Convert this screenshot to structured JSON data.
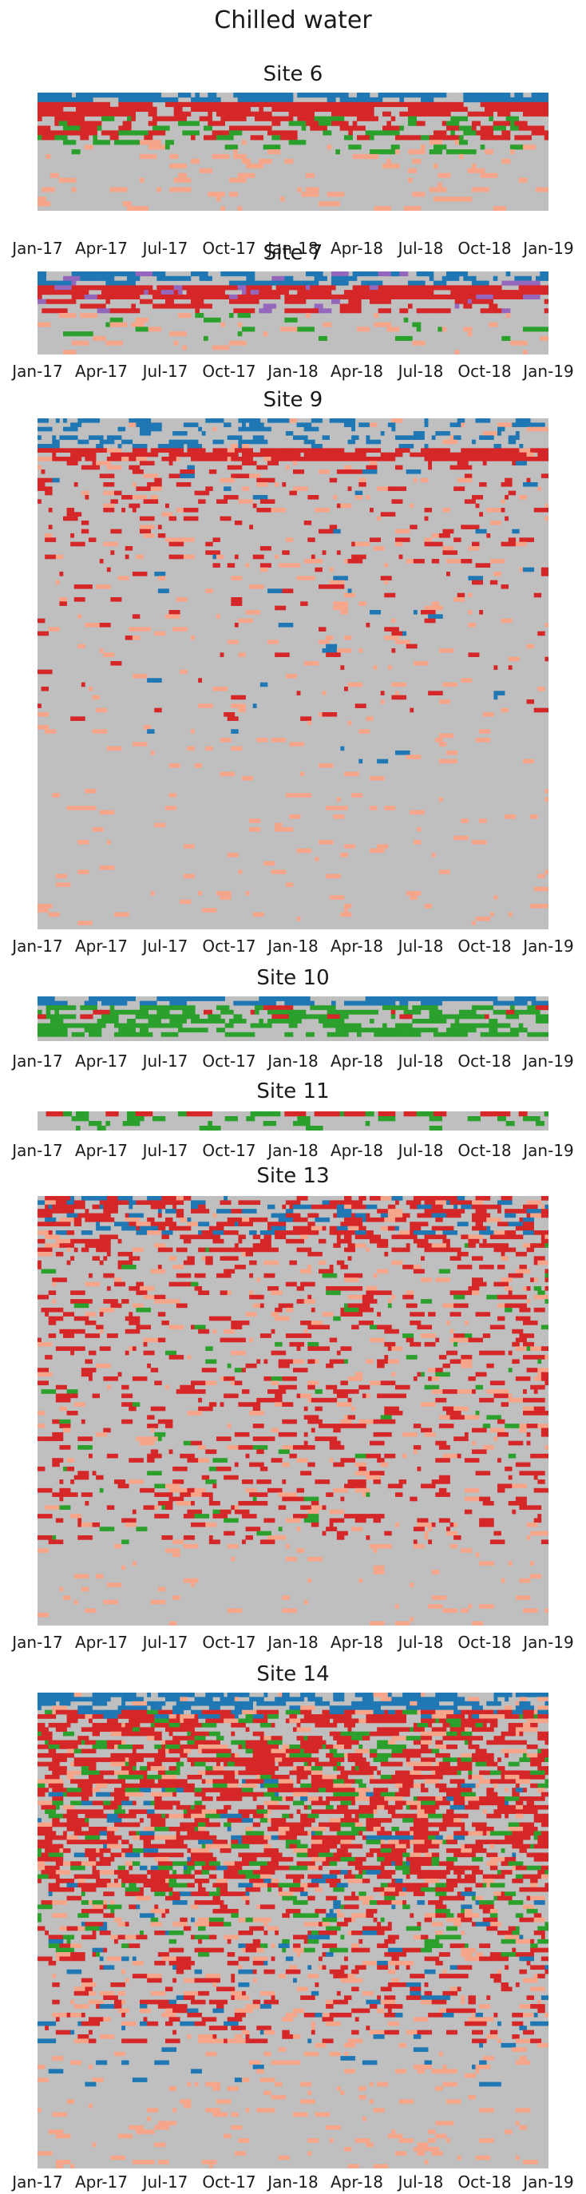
{
  "title": "Chilled water",
  "chart_data": [
    {
      "type": "heatmap",
      "title": "Site 6",
      "x_tick_labels": [
        "Jan-17",
        "Apr-17",
        "Jul-17",
        "Oct-17",
        "Jan-18",
        "Apr-18",
        "Jul-18",
        "Oct-18",
        "Jan-19"
      ],
      "rows": 25,
      "cols": 120,
      "seed": 6,
      "bands": [
        {
          "rows": [
            0,
            1
          ],
          "color": "#1f77b4",
          "p": 0.75
        },
        {
          "rows": [
            2,
            4
          ],
          "color": "#d62728",
          "p": 0.85
        },
        {
          "rows": [
            5,
            9
          ],
          "color": "#d62728",
          "p": 0.45
        },
        {
          "rows": [
            5,
            12
          ],
          "color": "#2ca02c",
          "p": 0.18
        },
        {
          "rows": [
            10,
            24
          ],
          "color": "#f5a58a",
          "p": 0.12
        }
      ]
    },
    {
      "type": "heatmap",
      "title": "Site 7",
      "x_tick_labels": [
        "Jan-17",
        "Apr-17",
        "Jul-17",
        "Oct-17",
        "Jan-18",
        "Apr-18",
        "Jul-18",
        "Oct-18",
        "Jan-19"
      ],
      "rows": 18,
      "cols": 120,
      "seed": 7,
      "bands": [
        {
          "rows": [
            0,
            2
          ],
          "color": "#1f77b4",
          "p": 0.55
        },
        {
          "rows": [
            3,
            5
          ],
          "color": "#d62728",
          "p": 0.85
        },
        {
          "rows": [
            6,
            8
          ],
          "color": "#d62728",
          "p": 0.4
        },
        {
          "rows": [
            0,
            8
          ],
          "color": "#9467bd",
          "p": 0.05
        },
        {
          "rows": [
            9,
            17
          ],
          "color": "#f5a58a",
          "p": 0.1
        },
        {
          "rows": [
            9,
            14
          ],
          "color": "#2ca02c",
          "p": 0.06
        }
      ]
    },
    {
      "type": "heatmap",
      "title": "Site 9",
      "x_tick_labels": [
        "Jan-17",
        "Apr-17",
        "Jul-17",
        "Oct-17",
        "Jan-18",
        "Apr-18",
        "Jul-18",
        "Oct-18",
        "Jan-19"
      ],
      "rows": 120,
      "cols": 140,
      "seed": 9,
      "bands": [
        {
          "rows": [
            0,
            6
          ],
          "color": "#1f77b4",
          "p": 0.25
        },
        {
          "rows": [
            7,
            9
          ],
          "color": "#d62728",
          "p": 0.8
        },
        {
          "rows": [
            10,
            35
          ],
          "color": "#d62728",
          "p": 0.12
        },
        {
          "rows": [
            36,
            70
          ],
          "color": "#d62728",
          "p": 0.04
        },
        {
          "rows": [
            0,
            119
          ],
          "color": "#f5a58a",
          "p": 0.04
        },
        {
          "rows": [
            10,
            80
          ],
          "color": "#1f77b4",
          "p": 0.01
        }
      ]
    },
    {
      "type": "heatmap",
      "title": "Site 10",
      "x_tick_labels": [
        "Jan-17",
        "Apr-17",
        "Jul-17",
        "Oct-17",
        "Jan-18",
        "Apr-18",
        "Jul-18",
        "Oct-18",
        "Jan-19"
      ],
      "rows": 10,
      "cols": 120,
      "seed": 10,
      "bands": [
        {
          "rows": [
            0,
            1
          ],
          "color": "#1f77b4",
          "p": 0.7
        },
        {
          "rows": [
            2,
            8
          ],
          "color": "#2ca02c",
          "p": 0.55
        },
        {
          "rows": [
            2,
            4
          ],
          "color": "#d62728",
          "p": 0.08
        }
      ]
    },
    {
      "type": "heatmap",
      "title": "Site 11",
      "x_tick_labels": [
        "Jan-17",
        "Apr-17",
        "Jul-17",
        "Oct-17",
        "Jan-18",
        "Apr-18",
        "Jul-18",
        "Oct-18",
        "Jan-19"
      ],
      "rows": 4,
      "cols": 120,
      "seed": 11,
      "bands": [
        {
          "rows": [
            0,
            0
          ],
          "color": "#d62728",
          "p": 0.6
        },
        {
          "rows": [
            0,
            3
          ],
          "color": "#2ca02c",
          "p": 0.2
        }
      ]
    },
    {
      "type": "heatmap",
      "title": "Site 13",
      "x_tick_labels": [
        "Jan-17",
        "Apr-17",
        "Jul-17",
        "Oct-17",
        "Jan-18",
        "Apr-18",
        "Jul-18",
        "Oct-18",
        "Jan-19"
      ],
      "rows": 100,
      "cols": 140,
      "seed": 13,
      "bands": [
        {
          "rows": [
            0,
            8
          ],
          "color": "#1f77b4",
          "p": 0.3
        },
        {
          "rows": [
            0,
            12
          ],
          "color": "#d62728",
          "p": 0.4
        },
        {
          "rows": [
            13,
            80
          ],
          "color": "#d62728",
          "p": 0.18
        },
        {
          "rows": [
            0,
            99
          ],
          "color": "#f5a58a",
          "p": 0.05
        },
        {
          "rows": [
            10,
            80
          ],
          "color": "#2ca02c",
          "p": 0.02
        }
      ]
    },
    {
      "type": "heatmap",
      "title": "Site 14",
      "x_tick_labels": [
        "Jan-17",
        "Apr-17",
        "Jul-17",
        "Oct-17",
        "Jan-18",
        "Apr-18",
        "Jul-18",
        "Oct-18",
        "Jan-19"
      ],
      "rows": 110,
      "cols": 140,
      "seed": 14,
      "bands": [
        {
          "rows": [
            0,
            5
          ],
          "color": "#1f77b4",
          "p": 0.6
        },
        {
          "rows": [
            4,
            45
          ],
          "color": "#d62728",
          "p": 0.55
        },
        {
          "rows": [
            4,
            60
          ],
          "color": "#2ca02c",
          "p": 0.12
        },
        {
          "rows": [
            46,
            80
          ],
          "color": "#d62728",
          "p": 0.2
        },
        {
          "rows": [
            20,
            90
          ],
          "color": "#1f77b4",
          "p": 0.04
        },
        {
          "rows": [
            0,
            109
          ],
          "color": "#f5a58a",
          "p": 0.08
        }
      ]
    }
  ],
  "colors": {
    "background": "#bfbfbf",
    "blue": "#1f77b4",
    "red": "#d62728",
    "green": "#2ca02c",
    "salmon": "#f5a58a",
    "purple": "#9467bd"
  }
}
